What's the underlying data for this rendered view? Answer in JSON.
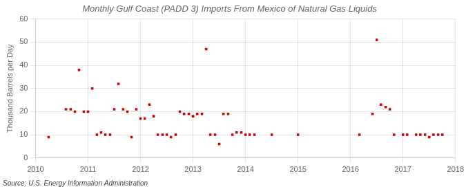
{
  "chart_data": {
    "type": "scatter",
    "title": "Monthly Gulf Coast (PADD 3) Imports From Mexico of Natural Gas Liquids",
    "y_label": "Thousand Barrels per Day",
    "annotations": [
      "Source: U.S. Energy Information Administration"
    ],
    "color": "#cc0000",
    "marker": "square",
    "grid": true,
    "xlim": [
      2010.0,
      2018.0
    ],
    "xticks": [
      2010,
      2011,
      2012,
      2013,
      2014,
      2015,
      2016,
      2017,
      2018
    ],
    "ylim": [
      0,
      60
    ],
    "yticks": [
      0,
      10,
      20,
      30,
      40,
      50,
      60
    ],
    "x": [
      2010.25,
      2010.58,
      2010.67,
      2010.75,
      2010.83,
      2010.92,
      2011.0,
      2011.08,
      2011.17,
      2011.25,
      2011.33,
      2011.42,
      2011.5,
      2011.58,
      2011.67,
      2011.75,
      2011.83,
      2011.92,
      2012.0,
      2012.08,
      2012.17,
      2012.25,
      2012.33,
      2012.42,
      2012.5,
      2012.58,
      2012.67,
      2012.75,
      2012.83,
      2012.92,
      2013.0,
      2013.08,
      2013.17,
      2013.25,
      2013.33,
      2013.42,
      2013.5,
      2013.58,
      2013.67,
      2013.75,
      2013.83,
      2013.92,
      2014.0,
      2014.08,
      2014.17,
      2014.5,
      2015.0,
      2016.17,
      2016.42,
      2016.5,
      2016.58,
      2016.67,
      2016.75,
      2016.83,
      2017.0,
      2017.08,
      2017.25,
      2017.33,
      2017.42,
      2017.5,
      2017.58,
      2017.67,
      2017.75
    ],
    "values": [
      9,
      21,
      21,
      20,
      38,
      20,
      20,
      30,
      10,
      11,
      10,
      10,
      21,
      32,
      21,
      20,
      9,
      21,
      17,
      17,
      23,
      18,
      10,
      10,
      10,
      9,
      10,
      20,
      19,
      19,
      18,
      19,
      19,
      47,
      10,
      10,
      6,
      19,
      19,
      10,
      11,
      11,
      10,
      10,
      10,
      10,
      10,
      10,
      19,
      51,
      23,
      22,
      21,
      10,
      10,
      10,
      10,
      10,
      10,
      9,
      10,
      10,
      10
    ]
  }
}
